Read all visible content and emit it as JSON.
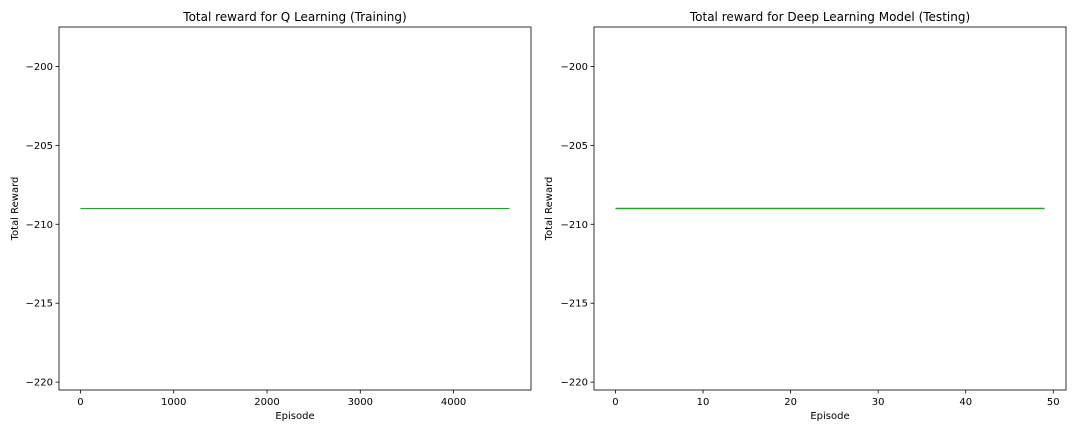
{
  "chart_data": [
    {
      "type": "line",
      "title": "Total reward for Q Learning (Training)",
      "xlabel": "Episode",
      "ylabel": "Total Reward",
      "xlim": [
        -230,
        4830
      ],
      "ylim": [
        -220.5,
        -197.5
      ],
      "xticks": [
        0,
        1000,
        2000,
        3000,
        4000
      ],
      "yticks": [
        -200,
        -205,
        -210,
        -215,
        -220
      ],
      "grid": false,
      "series": [
        {
          "color": "#2ca02c",
          "x": [
            0,
            4600
          ],
          "y": [
            -209,
            -209
          ]
        }
      ]
    },
    {
      "type": "line",
      "title": "Total reward for Deep Learning Model (Testing)",
      "xlabel": "Episode",
      "ylabel": "Total Reward",
      "xlim": [
        -2.45,
        51.45
      ],
      "ylim": [
        -220.5,
        -197.5
      ],
      "xticks": [
        0,
        10,
        20,
        30,
        40,
        50
      ],
      "yticks": [
        -200,
        -205,
        -210,
        -215,
        -220
      ],
      "grid": false,
      "series": [
        {
          "color": "#2ca02c",
          "x": [
            0,
            49
          ],
          "y": [
            -209,
            -209
          ]
        }
      ]
    }
  ]
}
